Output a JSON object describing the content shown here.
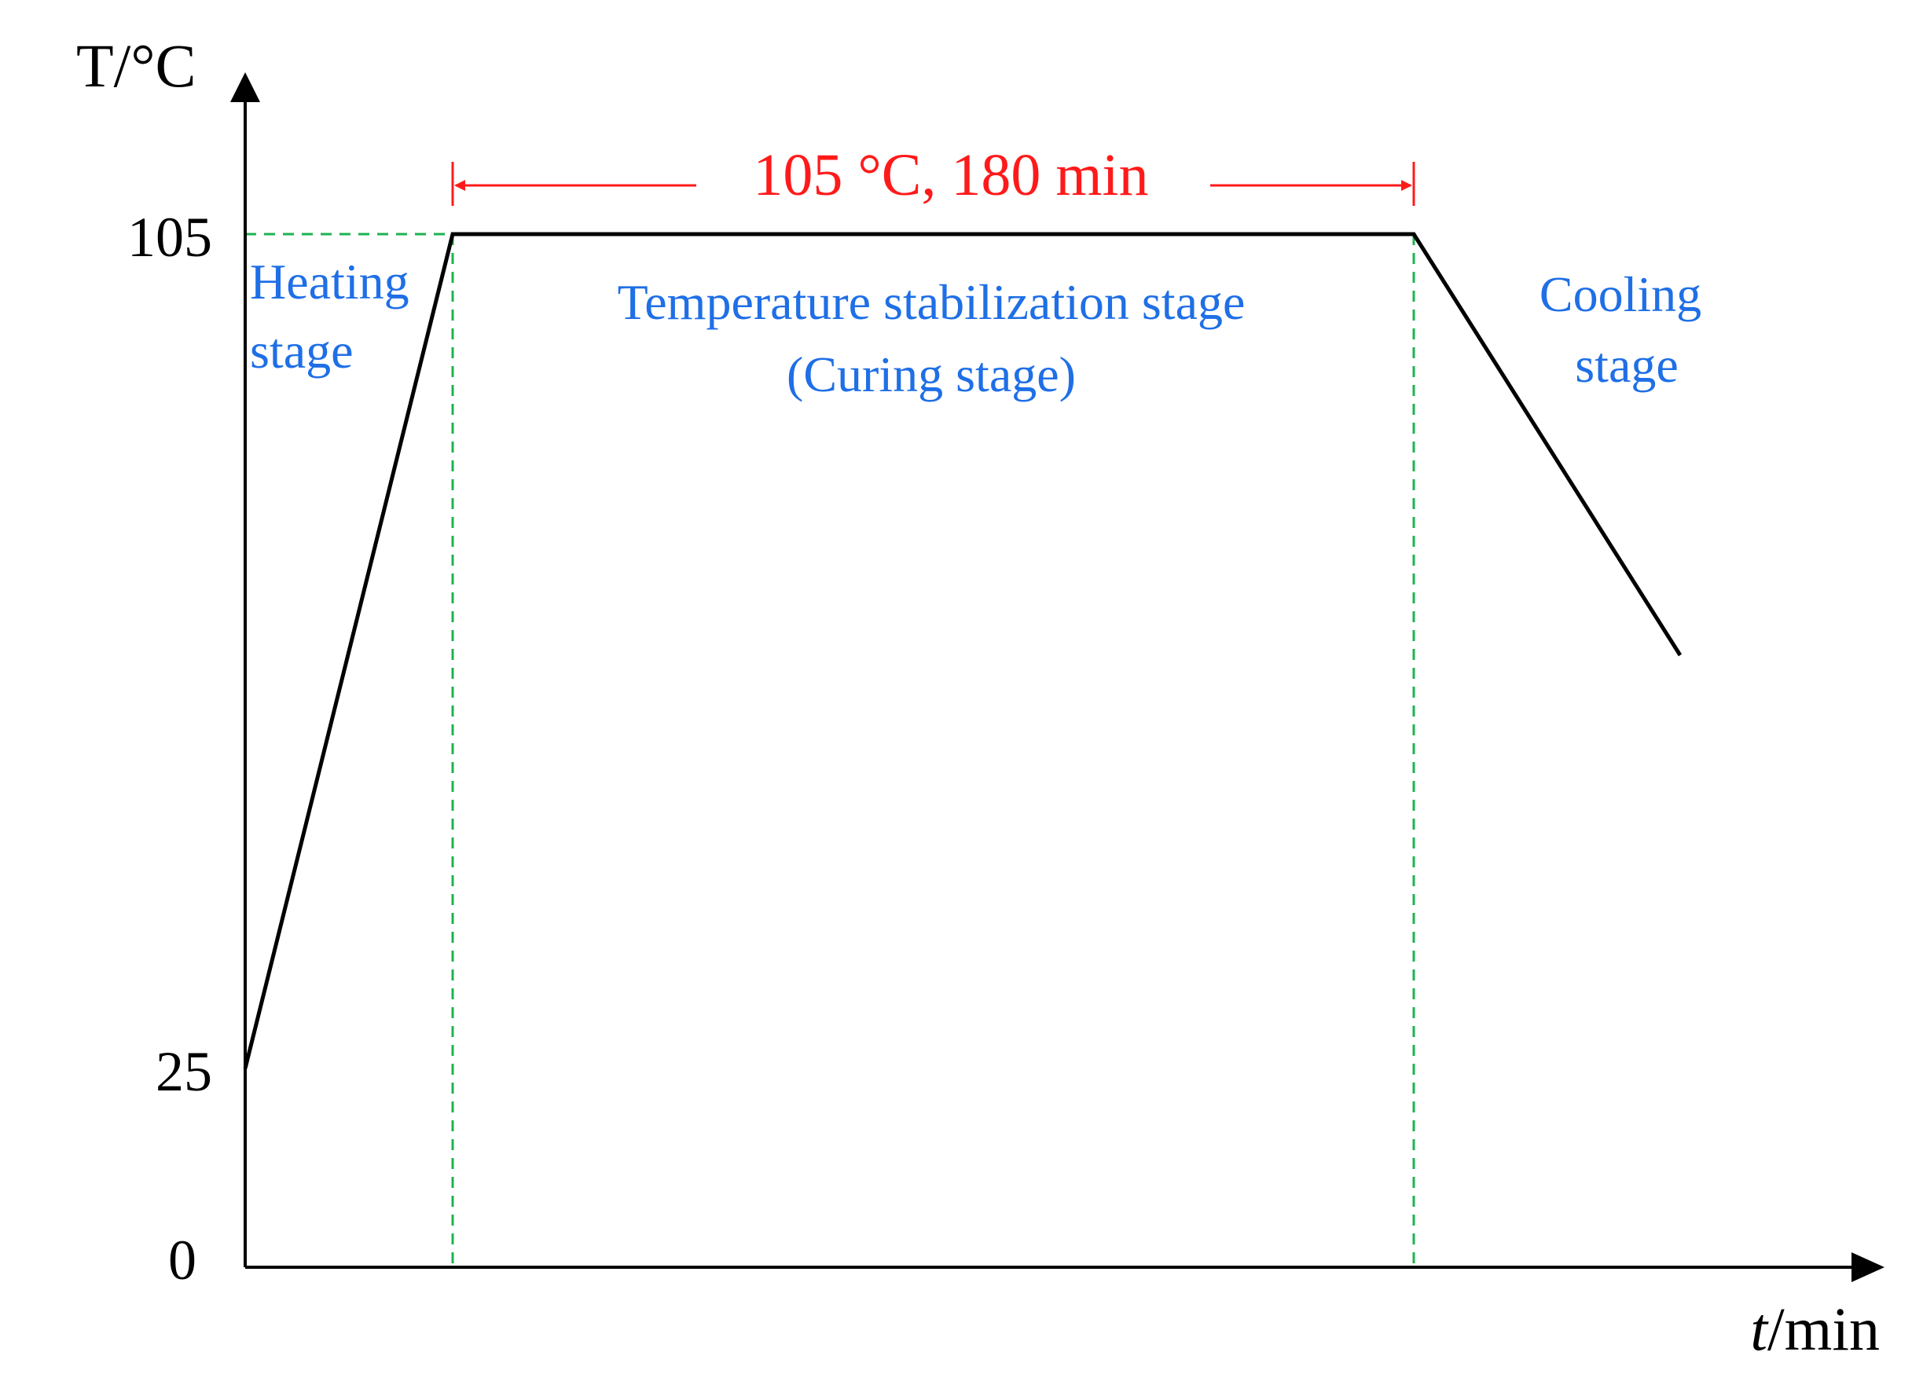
{
  "axes": {
    "y_label": "T/°C",
    "x_label_var": "t",
    "x_label_unit": "/min",
    "y_ticks": [
      "105",
      "25",
      "0"
    ]
  },
  "hold_annotation": "105 °C, 180 min",
  "stages": {
    "heating": [
      "Heating",
      "stage"
    ],
    "stabilization": [
      "Temperature stabilization stage",
      "(Curing stage)"
    ],
    "cooling": [
      "Cooling",
      "stage"
    ]
  },
  "profile": {
    "start_temperature_c": 25,
    "hold_temperature_c": 105,
    "hold_duration_min": 180
  },
  "colors": {
    "axis": "#000000",
    "profile_line": "#000000",
    "guide_line": "#1db34f",
    "stage_text": "#1f6fe6",
    "annotation": "#ff1a1a"
  }
}
